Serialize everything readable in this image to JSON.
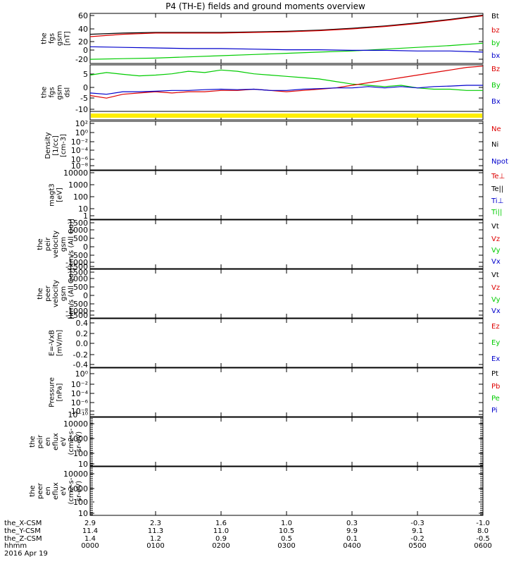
{
  "title": "P4 (TH-E) fields and ground moments overview",
  "colors": {
    "black": "#000000",
    "red": "#dd0000",
    "green": "#00cc00",
    "blue": "#0000cc",
    "yellow": "#ffee00"
  },
  "chart_data": [
    {
      "type": "line",
      "ylabel": [
        "the",
        "fgs",
        "gsm",
        "[nT]"
      ],
      "yticks": [
        "60",
        "40",
        "20",
        "0",
        "-20"
      ],
      "ylim": [
        -22,
        62
      ],
      "legend": [
        {
          "name": "Bt",
          "color": "black"
        },
        {
          "name": "bz",
          "color": "red"
        },
        {
          "name": "by",
          "color": "green"
        },
        {
          "name": "bx",
          "color": "blue"
        }
      ],
      "series": [
        {
          "name": "Bt",
          "color": "black",
          "x": [
            0,
            0.5,
            1,
            1.5,
            2,
            2.5,
            3,
            3.5,
            4,
            4.5,
            5,
            5.5,
            6
          ],
          "y": [
            27,
            29,
            30,
            30,
            30,
            31,
            32,
            34,
            37,
            41,
            46,
            52,
            59
          ]
        },
        {
          "name": "bz",
          "color": "red",
          "x": [
            0,
            0.5,
            1,
            1.5,
            2,
            2.5,
            3,
            3.5,
            4,
            4.5,
            5,
            5.5,
            6
          ],
          "y": [
            23,
            27,
            29,
            29,
            29,
            30,
            31,
            33,
            36,
            40,
            45,
            51,
            58
          ]
        },
        {
          "name": "by",
          "color": "green",
          "x": [
            0,
            0.5,
            1,
            1.5,
            2,
            2.5,
            3,
            3.5,
            4,
            4.5,
            5,
            5.5,
            6
          ],
          "y": [
            -15,
            -14,
            -13,
            -11,
            -9,
            -7,
            -5,
            -3,
            -1,
            2,
            5,
            8,
            12
          ]
        },
        {
          "name": "bx",
          "color": "blue",
          "x": [
            0,
            0.5,
            1,
            1.5,
            2,
            2.5,
            3,
            3.5,
            4,
            4.5,
            5,
            5.5,
            6
          ],
          "y": [
            6,
            5,
            4,
            3,
            3,
            2,
            1,
            1,
            0,
            0,
            -1,
            -1,
            -3
          ]
        }
      ]
    },
    {
      "type": "line",
      "ylabel": [
        "the",
        "fgs",
        "gsm",
        "dsl"
      ],
      "yticks": [
        "5",
        "0",
        "-5",
        "-10"
      ],
      "ylim": [
        -13,
        8.5
      ],
      "legend": [
        {
          "name": "Bz",
          "color": "red"
        },
        {
          "name": "By",
          "color": "green"
        },
        {
          "name": "Bx",
          "color": "blue"
        }
      ],
      "series": [
        {
          "name": "By",
          "color": "green",
          "x": [
            0,
            0.25,
            0.5,
            0.75,
            1,
            1.25,
            1.5,
            1.75,
            2,
            2.25,
            2.5,
            2.75,
            3,
            3.25,
            3.5,
            3.75,
            4,
            4.25,
            4.5,
            4.75,
            5,
            5.25,
            5.5,
            5.75,
            6
          ],
          "y": [
            4.5,
            5.5,
            4.8,
            4.2,
            4.5,
            5.0,
            6.0,
            5.5,
            6.5,
            6.0,
            5.0,
            4.5,
            4.0,
            3.5,
            3.0,
            2.0,
            1.0,
            0.5,
            0.0,
            0.5,
            -0.5,
            -1.0,
            -1.0,
            -1.5,
            -1.5
          ]
        },
        {
          "name": "Bz",
          "color": "red",
          "x": [
            0,
            0.25,
            0.5,
            0.75,
            1,
            1.25,
            1.5,
            1.75,
            2,
            2.25,
            2.5,
            2.75,
            3,
            3.25,
            3.5,
            3.75,
            4,
            4.25,
            4.5,
            4.75,
            5,
            5.25,
            5.5,
            5.75,
            6
          ],
          "y": [
            -3.5,
            -4.5,
            -3.0,
            -2.5,
            -2.0,
            -2.5,
            -2.0,
            -2.0,
            -1.5,
            -1.5,
            -1.0,
            -1.5,
            -2.0,
            -1.5,
            -1.0,
            -0.5,
            0.5,
            1.5,
            2.5,
            3.5,
            4.5,
            5.5,
            6.5,
            7.5,
            8.0
          ]
        },
        {
          "name": "Bx",
          "color": "blue",
          "x": [
            0,
            0.25,
            0.5,
            0.75,
            1,
            1.25,
            1.5,
            1.75,
            2,
            2.25,
            2.5,
            2.75,
            3,
            3.25,
            3.5,
            3.75,
            4,
            4.25,
            4.5,
            4.75,
            5,
            5.25,
            5.5,
            5.75,
            6
          ],
          "y": [
            -2.5,
            -3.0,
            -2.0,
            -2.0,
            -1.8,
            -1.5,
            -1.5,
            -1.2,
            -1.0,
            -1.2,
            -1.0,
            -1.5,
            -1.5,
            -1.0,
            -0.8,
            -0.5,
            -0.5,
            0.0,
            -0.5,
            0.0,
            -0.5,
            0.0,
            0.2,
            0.5,
            0.5
          ]
        }
      ]
    },
    {
      "type": "line",
      "ylabel": [
        "Density",
        "[1/cc]",
        "[cm-3]"
      ],
      "yticks": [
        "10²",
        "10⁰",
        "10⁻²",
        "10⁻⁴",
        "10⁻⁶",
        "10⁻⁸"
      ],
      "legend": [
        {
          "name": "Ne",
          "color": "red"
        },
        {
          "name": "Ni",
          "color": "black"
        },
        {
          "name": "Npot",
          "color": "blue"
        }
      ],
      "series": []
    },
    {
      "type": "line",
      "ylabel": [
        "magt3",
        "[eV]"
      ],
      "yticks": [
        "10000",
        "1000",
        "100",
        "10",
        "1"
      ],
      "legend": [
        {
          "name": "Te⊥",
          "color": "red"
        },
        {
          "name": "Te||",
          "color": "black"
        },
        {
          "name": "Ti⊥",
          "color": "blue"
        },
        {
          "name": "Ti||",
          "color": "green"
        }
      ],
      "series": []
    },
    {
      "type": "line",
      "ylabel": [
        "the",
        "peir",
        "velocity",
        "gsm",
        "[km/s (All Qe)]"
      ],
      "yticks": [
        "1500",
        "1000",
        "500",
        "0",
        "-500",
        "-1000",
        "-1500"
      ],
      "legend": [
        {
          "name": "Vt",
          "color": "black"
        },
        {
          "name": "Vz",
          "color": "red"
        },
        {
          "name": "Vy",
          "color": "green"
        },
        {
          "name": "Vx",
          "color": "blue"
        }
      ],
      "series": []
    },
    {
      "type": "line",
      "ylabel": [
        "the",
        "peer",
        "velocity",
        "gsm",
        "[km/s (All Qe)]"
      ],
      "yticks": [
        "1500",
        "1000",
        "500",
        "0",
        "-500",
        "-1000",
        "-1500"
      ],
      "legend": [
        {
          "name": "Vt",
          "color": "black"
        },
        {
          "name": "Vz",
          "color": "red"
        },
        {
          "name": "Vy",
          "color": "green"
        },
        {
          "name": "Vx",
          "color": "blue"
        }
      ],
      "series": []
    },
    {
      "type": "line",
      "ylabel": [
        "E=-VxB",
        "[mV/m]"
      ],
      "yticks": [
        "0.4",
        "0.2",
        "0.0",
        "-0.2",
        "-0.4"
      ],
      "legend": [
        {
          "name": "Ez",
          "color": "red"
        },
        {
          "name": "Ey",
          "color": "green"
        },
        {
          "name": "Ex",
          "color": "blue"
        }
      ],
      "series": []
    },
    {
      "type": "line",
      "ylabel": [
        "Pressure",
        "[nPa]"
      ],
      "yticks": [
        "10⁰",
        "10⁻²",
        "10⁻⁴",
        "10⁻⁶",
        "10⁻⁸",
        "10⁻¹⁰"
      ],
      "legend": [
        {
          "name": "Pt",
          "color": "black"
        },
        {
          "name": "Pb",
          "color": "red"
        },
        {
          "name": "Pe",
          "color": "green"
        },
        {
          "name": "Pi",
          "color": "blue"
        }
      ],
      "series": []
    },
    {
      "type": "heatmap",
      "ylabel": [
        "the",
        "peir",
        "en",
        "eflux",
        "eV",
        "(cm2-s-",
        "sr-eV)"
      ],
      "yticks": [
        "10000",
        "1000",
        "100",
        "10"
      ],
      "legend": [],
      "series": []
    },
    {
      "type": "heatmap",
      "ylabel": [
        "the",
        "peer",
        "en",
        "eflux",
        "eV",
        "(cm2-s-",
        "sr-eV)"
      ],
      "yticks": [
        "10000",
        "1000",
        "100",
        "10"
      ],
      "legend": [],
      "series": []
    }
  ],
  "x_axis": {
    "rows": [
      {
        "label": "the_X-CSM",
        "values": [
          "2.9",
          "2.3",
          "1.6",
          "1.0",
          "0.3",
          "-0.3",
          "-1.0"
        ]
      },
      {
        "label": "the_Y-CSM",
        "values": [
          "11.4",
          "11.3",
          "11.0",
          "10.5",
          "9.9",
          "9.1",
          "8.0"
        ]
      },
      {
        "label": "the_Z-CSM",
        "values": [
          "1.4",
          "1.2",
          "0.9",
          "0.5",
          "0.1",
          "-0.2",
          "-0.5"
        ]
      },
      {
        "label": "hhmm",
        "values": [
          "0000",
          "0100",
          "0200",
          "0300",
          "0400",
          "0500",
          "0600"
        ]
      }
    ],
    "date": "2016 Apr 19"
  }
}
